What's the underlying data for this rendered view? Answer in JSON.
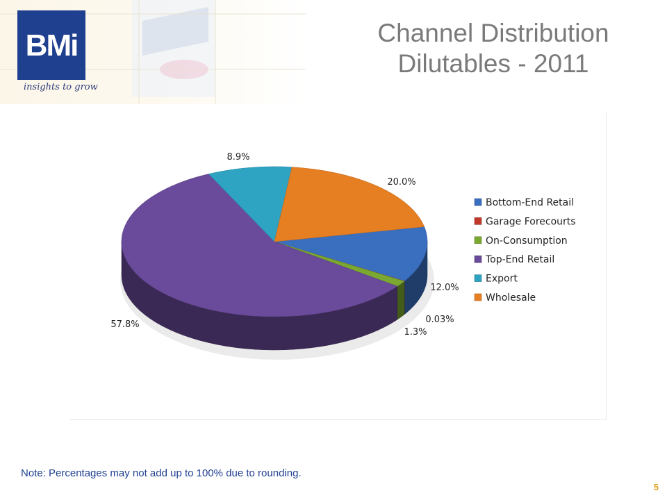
{
  "header": {
    "logo_text": "BMi",
    "tagline": "insights to grow",
    "title_line1": "Channel Distribution",
    "title_line2": "Dilutables - 2011"
  },
  "chart_data": {
    "type": "pie",
    "three_d": true,
    "legend_position": "right",
    "slices": [
      {
        "label": "Bottom-End Retail",
        "value": 12.0,
        "display": "12.0%",
        "color": "#3a6fbf"
      },
      {
        "label": "Garage Forecourts",
        "value": 0.03,
        "display": "0.03%",
        "color": "#c0392b"
      },
      {
        "label": "On-Consumption",
        "value": 1.3,
        "display": "1.3%",
        "color": "#7aa830"
      },
      {
        "label": "Top-End Retail",
        "value": 57.8,
        "display": "57.8%",
        "color": "#6a4a9a"
      },
      {
        "label": "Export",
        "value": 8.9,
        "display": "8.9%",
        "color": "#2fa3c2"
      },
      {
        "label": "Wholesale",
        "value": 20.0,
        "display": "20.0%",
        "color": "#e67e22"
      }
    ]
  },
  "footer": {
    "note": "Note: Percentages may not add up to 100% due to rounding.",
    "page_number": "5"
  }
}
